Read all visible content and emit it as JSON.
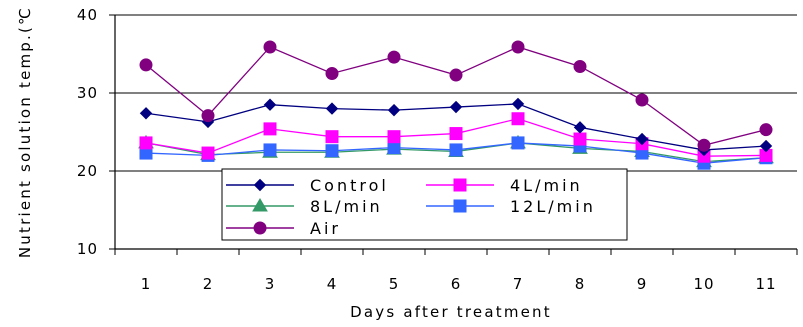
{
  "chart_data": {
    "type": "line",
    "title": "",
    "xlabel": "Days after treatment",
    "ylabel": "Nutrient solution temp.(℃",
    "categories": [
      "1",
      "2",
      "3",
      "4",
      "5",
      "6",
      "7",
      "8",
      "9",
      "10",
      "11"
    ],
    "ylim": [
      10,
      40
    ],
    "yticks": [
      "10",
      "20",
      "30",
      "40"
    ],
    "grid": "horizontal",
    "legend_position": "bottom-center",
    "series": [
      {
        "name": "Control",
        "color": "#000080",
        "marker": "diamond",
        "values": [
          27.4,
          26.3,
          28.5,
          28.0,
          27.8,
          28.2,
          28.6,
          25.6,
          24.1,
          22.7,
          23.2
        ]
      },
      {
        "name": "4L/min",
        "color": "#FF00FF",
        "marker": "square",
        "values": [
          23.6,
          22.3,
          25.4,
          24.4,
          24.4,
          24.8,
          26.7,
          24.1,
          23.5,
          21.9,
          22.0
        ]
      },
      {
        "name": "8L/min",
        "color": "#339966",
        "marker": "triangle",
        "values": [
          23.6,
          22.1,
          22.4,
          22.4,
          22.8,
          22.5,
          23.6,
          22.9,
          22.5,
          21.2,
          21.7
        ]
      },
      {
        "name": "12L/min",
        "color": "#3366FF",
        "marker": "square",
        "values": [
          22.3,
          22.0,
          22.7,
          22.6,
          23.0,
          22.7,
          23.6,
          23.2,
          22.3,
          21.0,
          21.7
        ]
      },
      {
        "name": "Air",
        "color": "#800080",
        "marker": "circle",
        "values": [
          33.6,
          27.1,
          35.9,
          32.5,
          34.6,
          32.3,
          35.9,
          33.4,
          29.1,
          23.3,
          25.3
        ]
      }
    ]
  }
}
